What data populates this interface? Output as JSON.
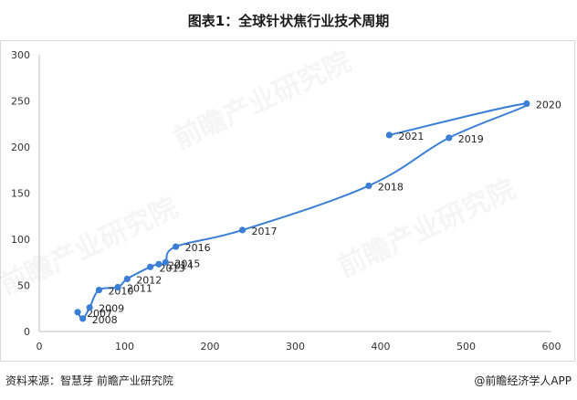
{
  "title": "图表1：全球针状焦行业技术周期",
  "source": "资料来源：智慧芽 前瞻产业研究院",
  "brand": "@前瞻经济学人APP",
  "watermark": "前瞻产业研究院",
  "colors": {
    "line": "#3a7fd5",
    "axis": "#333333"
  },
  "chart_data": {
    "type": "line",
    "title": "",
    "xlabel": "",
    "ylabel": "",
    "xlim": [
      0,
      600
    ],
    "ylim": [
      0,
      300
    ],
    "xticks": [
      0,
      100,
      200,
      300,
      400,
      500,
      600
    ],
    "yticks": [
      0,
      50,
      100,
      150,
      200,
      250,
      300
    ],
    "grid": false,
    "series": [
      {
        "points": [
          {
            "label": "2007",
            "x": 45,
            "y": 21
          },
          {
            "label": "2008",
            "x": 51,
            "y": 14
          },
          {
            "label": "2009",
            "x": 59,
            "y": 26
          },
          {
            "label": "2010",
            "x": 70,
            "y": 45
          },
          {
            "label": "2011",
            "x": 92,
            "y": 48
          },
          {
            "label": "2012",
            "x": 103,
            "y": 57
          },
          {
            "label": "2013",
            "x": 130,
            "y": 70
          },
          {
            "label": "2014",
            "x": 140,
            "y": 73
          },
          {
            "label": "2015",
            "x": 148,
            "y": 75
          },
          {
            "label": "2016",
            "x": 160,
            "y": 92
          },
          {
            "label": "2017",
            "x": 238,
            "y": 110
          },
          {
            "label": "2018",
            "x": 386,
            "y": 158
          },
          {
            "label": "2019",
            "x": 480,
            "y": 210
          },
          {
            "label": "2020",
            "x": 571,
            "y": 247
          },
          {
            "label": "2021",
            "x": 410,
            "y": 213
          }
        ]
      }
    ]
  }
}
